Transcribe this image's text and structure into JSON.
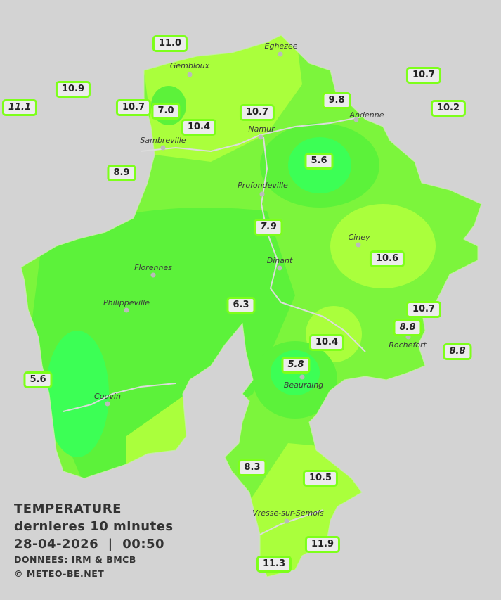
{
  "legend": {
    "title": "TEMPERATURE",
    "subtitle": "dernieres 10 minutes",
    "datetime": "28-04-2026  |  00:50",
    "source": "DONNEES: IRM & BMCB",
    "copyright": "© METEO-BE.NET"
  },
  "colors": {
    "background": "#d3d3d3",
    "cold": "#3cff55",
    "mid": "#5cf23a",
    "warm": "#aaff3c",
    "label_border": "#7dff1a",
    "rivers": "#dddddd"
  },
  "towns": [
    "Eghezee",
    "Gembloux",
    "Andenne",
    "Namur",
    "Sambreville",
    "Profondeville",
    "Ciney",
    "Dinant",
    "Florennes",
    "Philippeville",
    "Rochefort",
    "Beauraing",
    "Couvin",
    "Vresse-sur-Semois"
  ],
  "stations": [
    {
      "value": "11.0",
      "italic": false
    },
    {
      "value": "10.9",
      "italic": false
    },
    {
      "value": "11.1",
      "italic": true
    },
    {
      "value": "10.7",
      "italic": false
    },
    {
      "value": "7.0",
      "italic": false
    },
    {
      "value": "10.4",
      "italic": false
    },
    {
      "value": "10.7",
      "italic": false
    },
    {
      "value": "9.8",
      "italic": false
    },
    {
      "value": "10.7",
      "italic": false
    },
    {
      "value": "10.2",
      "italic": false
    },
    {
      "value": "8.9",
      "italic": false
    },
    {
      "value": "5.6",
      "italic": false
    },
    {
      "value": "7.9",
      "italic": true
    },
    {
      "value": "10.6",
      "italic": false
    },
    {
      "value": "6.3",
      "italic": false
    },
    {
      "value": "10.7",
      "italic": false
    },
    {
      "value": "8.8",
      "italic": true
    },
    {
      "value": "8.8",
      "italic": true
    },
    {
      "value": "10.4",
      "italic": false
    },
    {
      "value": "5.8",
      "italic": true
    },
    {
      "value": "5.6",
      "italic": false
    },
    {
      "value": "8.3",
      "italic": false
    },
    {
      "value": "10.5",
      "italic": false
    },
    {
      "value": "11.9",
      "italic": false
    },
    {
      "value": "11.3",
      "italic": false
    }
  ]
}
